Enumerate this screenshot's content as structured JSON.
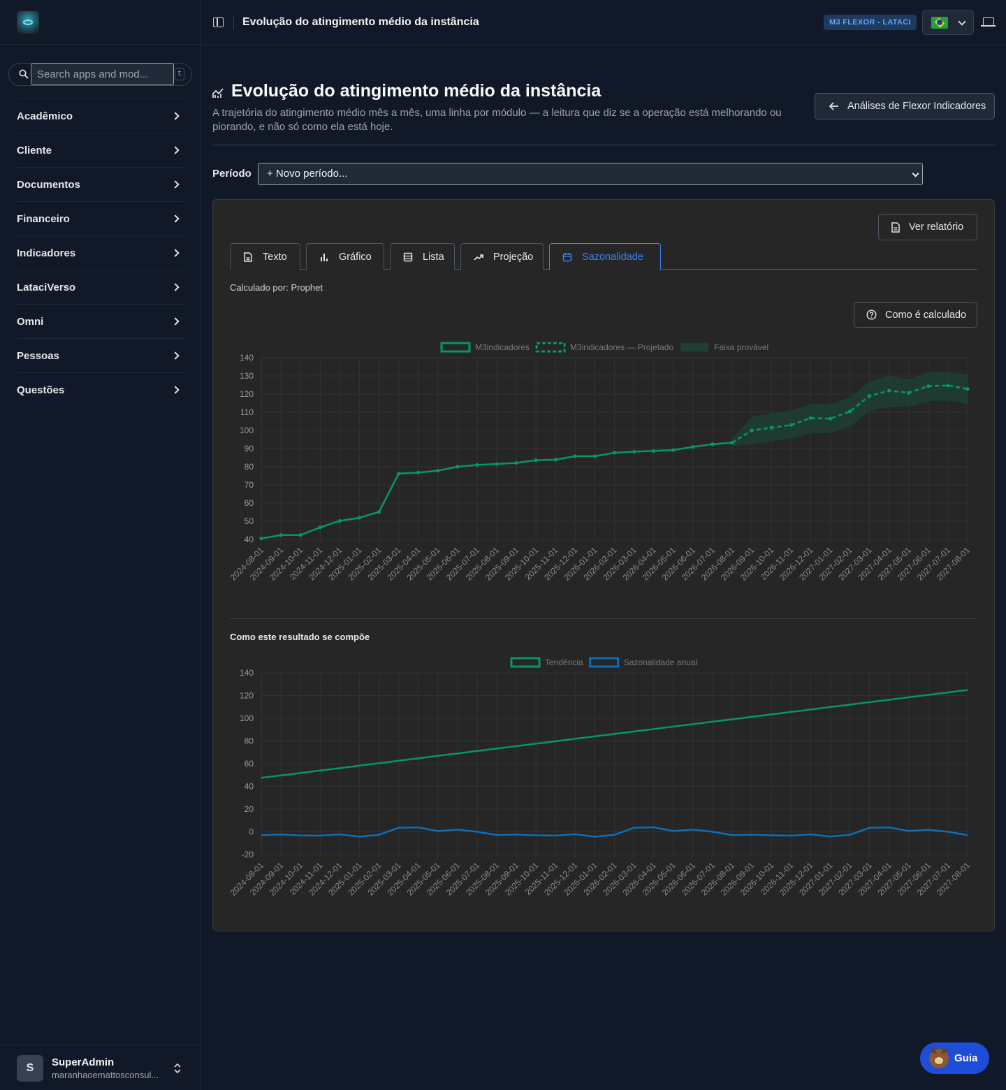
{
  "sidebar": {
    "search_placeholder": "Search apps and mod...",
    "search_shortcut": "t",
    "items": [
      {
        "label": "Acadêmico"
      },
      {
        "label": "Cliente"
      },
      {
        "label": "Documentos"
      },
      {
        "label": "Financeiro"
      },
      {
        "label": "Indicadores"
      },
      {
        "label": "LataciVerso"
      },
      {
        "label": "Omni"
      },
      {
        "label": "Pessoas"
      },
      {
        "label": "Questões"
      }
    ],
    "user": {
      "initial": "S",
      "name": "SuperAdmin",
      "email": "maranhaoemattosconsul..."
    }
  },
  "topbar": {
    "title": "Evolução do atingimento médio da instância",
    "badge": "M3 FLEXOR - LATACI"
  },
  "header": {
    "title": "Evolução do atingimento médio da instância",
    "description": "A trajetória do atingimento médio mês a mês, uma linha por módulo — a leitura que diz se a operação está melhorando ou piorando, e não só como ela está hoje.",
    "back_label": "Análises de Flexor Indicadores"
  },
  "period": {
    "label": "Período",
    "value": "+ Novo período..."
  },
  "card": {
    "report_label": "Ver relatório",
    "tabs": [
      {
        "label": "Texto",
        "icon": "document-icon"
      },
      {
        "label": "Gráfico",
        "icon": "bar-chart-icon"
      },
      {
        "label": "Lista",
        "icon": "list-icon"
      },
      {
        "label": "Projeção",
        "icon": "trend-up-icon"
      },
      {
        "label": "Sazonalidade",
        "icon": "calendar-icon",
        "active": true
      }
    ],
    "calc_by": "Calculado por: Prophet",
    "how_label": "Como é calculado",
    "composition_title": "Como este resultado se compõe"
  },
  "guia": {
    "label": "Guia"
  },
  "colors": {
    "green": "#059669",
    "blue": "#0b6fb8",
    "band": "#1e4032",
    "accent": "#3b82f6"
  },
  "chart_data": [
    {
      "type": "line",
      "x": [
        "2024-08-01",
        "2024-09-01",
        "2024-10-01",
        "2024-11-01",
        "2024-12-01",
        "2025-01-01",
        "2025-02-01",
        "2025-03-01",
        "2025-04-01",
        "2025-05-01",
        "2025-06-01",
        "2025-07-01",
        "2025-08-01",
        "2025-09-01",
        "2025-10-01",
        "2025-11-01",
        "2025-12-01",
        "2026-01-01",
        "2026-02-01",
        "2026-03-01",
        "2026-04-01",
        "2026-05-01",
        "2026-06-01",
        "2026-07-01",
        "2026-08-01",
        "2026-09-01",
        "2026-10-01",
        "2026-11-01",
        "2026-12-01",
        "2027-01-01",
        "2027-02-01",
        "2027-03-01",
        "2027-04-01",
        "2027-05-01",
        "2027-06-01",
        "2027-07-01",
        "2027-08-01"
      ],
      "series": [
        {
          "name": "M3indicadores",
          "style": "solid",
          "values": [
            40.5,
            42.4,
            42.4,
            46.6,
            50.2,
            51.9,
            55.1,
            76.2,
            76.8,
            77.8,
            80.0,
            81.0,
            81.5,
            82.1,
            83.6,
            83.9,
            85.8,
            85.8,
            87.7,
            88.3,
            88.7,
            89.2,
            90.9,
            92.4,
            93.2,
            null,
            null,
            null,
            null,
            null,
            null,
            null,
            null,
            null,
            null,
            null,
            null
          ]
        },
        {
          "name": "M3indicadores — Projetado",
          "style": "dashed",
          "values": [
            null,
            null,
            null,
            null,
            null,
            null,
            null,
            null,
            null,
            null,
            null,
            null,
            null,
            null,
            null,
            null,
            null,
            null,
            null,
            null,
            null,
            null,
            null,
            null,
            93.2,
            100.0,
            101.5,
            103.0,
            106.8,
            106.5,
            110.4,
            119.0,
            121.9,
            120.7,
            124.4,
            124.7,
            122.8
          ]
        },
        {
          "name": "Faixa provável",
          "style": "band",
          "lower": [
            null,
            null,
            null,
            null,
            null,
            null,
            null,
            null,
            null,
            null,
            null,
            null,
            null,
            null,
            null,
            null,
            null,
            null,
            null,
            null,
            null,
            null,
            null,
            null,
            91.0,
            92.5,
            94.0,
            95.5,
            98.5,
            98.5,
            102.0,
            110.5,
            113.0,
            113.0,
            116.0,
            116.5,
            114.5
          ],
          "upper": [
            null,
            null,
            null,
            null,
            null,
            null,
            null,
            null,
            null,
            null,
            null,
            null,
            null,
            null,
            null,
            null,
            null,
            null,
            null,
            null,
            null,
            null,
            null,
            null,
            95.5,
            107.5,
            109.5,
            111.0,
            114.5,
            114.5,
            118.0,
            127.0,
            130.0,
            128.0,
            132.0,
            132.0,
            131.0
          ]
        }
      ],
      "yticks": [
        40,
        50,
        60,
        70,
        80,
        90,
        100,
        110,
        120,
        130,
        140
      ],
      "ylim": [
        40,
        140
      ]
    },
    {
      "type": "line",
      "x": [
        "2024-08-01",
        "2024-09-01",
        "2024-10-01",
        "2024-11-01",
        "2024-12-01",
        "2025-01-01",
        "2025-02-01",
        "2025-03-01",
        "2025-04-01",
        "2025-05-01",
        "2025-06-01",
        "2025-07-01",
        "2025-08-01",
        "2025-09-01",
        "2025-10-01",
        "2025-11-01",
        "2025-12-01",
        "2026-01-01",
        "2026-02-01",
        "2026-03-01",
        "2026-04-01",
        "2026-05-01",
        "2026-06-01",
        "2026-07-01",
        "2026-08-01",
        "2026-09-01",
        "2026-10-01",
        "2026-11-01",
        "2026-12-01",
        "2027-01-01",
        "2027-02-01",
        "2027-03-01",
        "2027-04-01",
        "2027-05-01",
        "2027-06-01",
        "2027-07-01",
        "2027-08-01"
      ],
      "series": [
        {
          "name": "Tendência",
          "values": [
            47.5,
            49.7,
            51.8,
            54.0,
            56.1,
            58.3,
            60.4,
            62.6,
            64.7,
            66.9,
            69.0,
            71.2,
            73.3,
            75.5,
            77.6,
            79.8,
            81.9,
            84.1,
            86.2,
            88.4,
            90.5,
            92.7,
            94.8,
            97.0,
            99.1,
            101.3,
            103.4,
            105.6,
            107.7,
            109.9,
            112.0,
            114.2,
            116.3,
            118.5,
            120.6,
            122.8,
            124.9
          ]
        },
        {
          "name": "Sazonalidade anual",
          "values": [
            -3.0,
            -2.4,
            -3.2,
            -3.4,
            -2.2,
            -4.3,
            -2.6,
            3.6,
            3.9,
            0.7,
            1.9,
            0.1,
            -2.8,
            -2.4,
            -3.1,
            -3.3,
            -2.1,
            -4.3,
            -2.6,
            3.6,
            4.0,
            0.7,
            1.9,
            0.1,
            -2.9,
            -2.5,
            -3.1,
            -3.4,
            -2.2,
            -4.2,
            -2.6,
            3.6,
            3.9,
            0.8,
            1.8,
            0.1,
            -2.9
          ]
        }
      ],
      "yticks": [
        -20,
        0,
        20,
        40,
        60,
        80,
        100,
        120,
        140
      ],
      "ylim": [
        -20,
        140
      ]
    }
  ]
}
